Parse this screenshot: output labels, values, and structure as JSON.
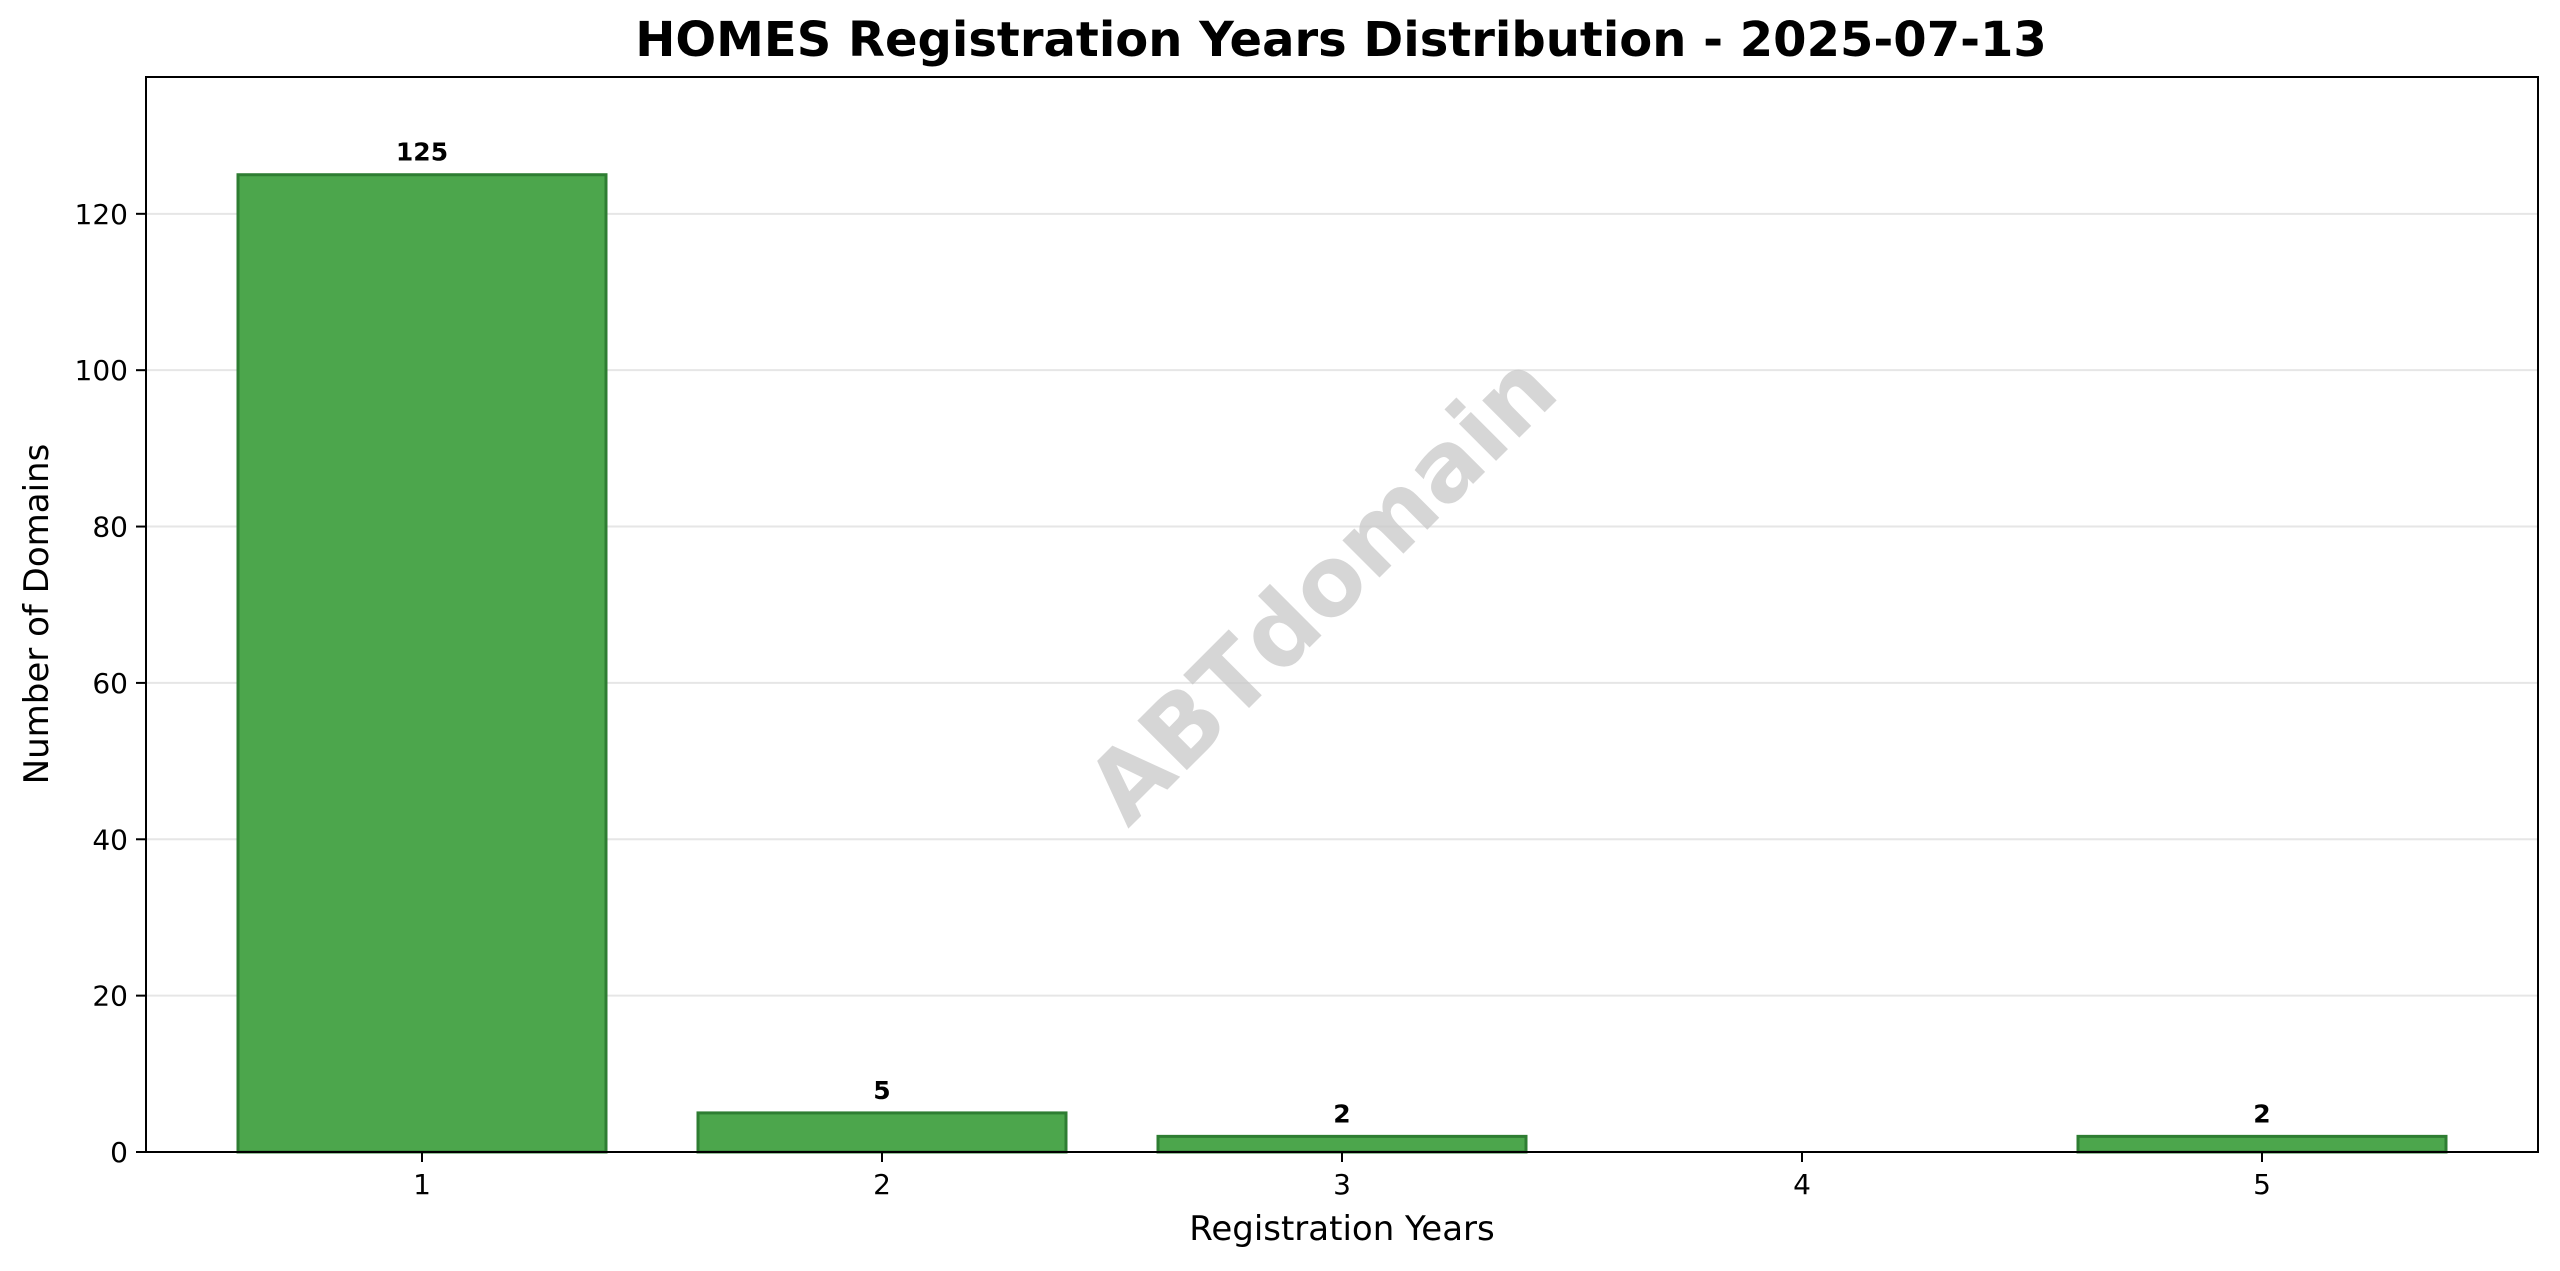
{
  "chart_data": {
    "type": "bar",
    "title": "HOMES Registration Years Distribution - 2025-07-13",
    "xlabel": "Registration Years",
    "ylabel": "Number of Domains",
    "categories": [
      "1",
      "2",
      "3",
      "4",
      "5"
    ],
    "values": [
      125,
      5,
      2,
      0,
      2
    ],
    "data_labels": [
      "125",
      "5",
      "2",
      "",
      "2"
    ],
    "ylim": [
      0,
      137.5
    ],
    "yticks": [
      0,
      20,
      40,
      60,
      80,
      100,
      120
    ],
    "grid": "y",
    "legend": "none",
    "colors": {
      "bar_fill": "#4ca64c",
      "bar_edge": "#2e7d32",
      "grid": "#e6e6e6"
    }
  },
  "watermark": "ABTdomain"
}
